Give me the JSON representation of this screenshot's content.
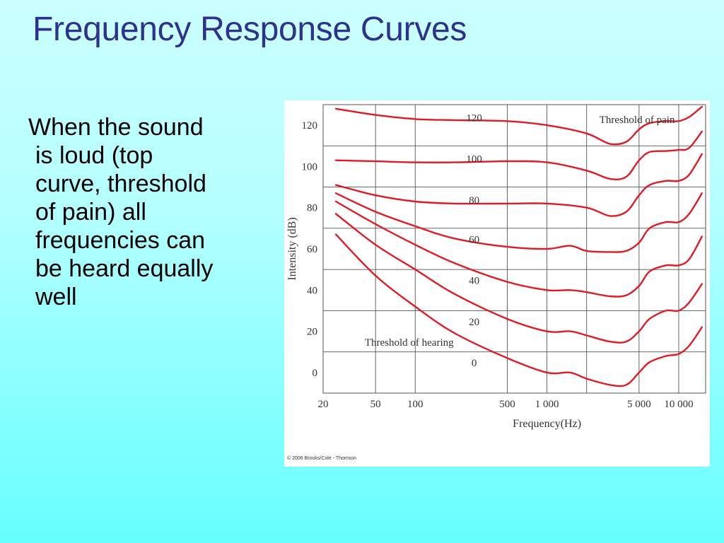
{
  "slide": {
    "title": "Frequency Response Curves",
    "body_lines": [
      "When the sound",
      "is loud (top",
      "curve, threshold",
      "of pain) all",
      "frequencies can",
      "be heard equally",
      "well"
    ]
  },
  "colors": {
    "title": "#2f3191",
    "curve": "#e01b24",
    "grid": "#555555",
    "panel": "#ffffff"
  },
  "chart_data": {
    "type": "line",
    "xscale": "log",
    "xlabel": "Frequency(Hz)",
    "ylabel": "Intensity (dB)",
    "xlim": [
      20,
      16000
    ],
    "ylim": [
      -10,
      130
    ],
    "grid": true,
    "x_ticks": [
      20,
      50,
      100,
      500,
      1000,
      5000,
      10000
    ],
    "x_tick_labels": [
      "20",
      "50",
      "100",
      "500",
      "1 000",
      "5 000",
      "10 000"
    ],
    "y_ticks": [
      0,
      20,
      40,
      60,
      80,
      100,
      120
    ],
    "y_tick_labels": [
      "0",
      "20",
      "40",
      "60",
      "80",
      "100",
      "120"
    ],
    "grid_x": [
      20,
      50,
      100,
      500,
      1000,
      2000,
      5000,
      10000,
      16000
    ],
    "grid_y": [
      -10,
      10,
      30,
      50,
      70,
      90,
      110,
      130
    ],
    "annotations": [
      {
        "text": "Threshold of pain",
        "x": 2500,
        "y": 121
      },
      {
        "text": "Threshold of hearing",
        "x": 90,
        "y": 13
      }
    ],
    "curve_labels_x": 280,
    "series": [
      {
        "name": "120",
        "label_y": 122,
        "x": [
          25,
          50,
          100,
          200,
          500,
          1000,
          2000,
          3000,
          4000,
          5000,
          6000,
          8000,
          10000,
          12000,
          15000
        ],
        "y": [
          128,
          125,
          123,
          122.5,
          122,
          120,
          116,
          111,
          112,
          118,
          121,
          122,
          122,
          124,
          129
        ]
      },
      {
        "name": "100",
        "label_y": 102,
        "x": [
          25,
          50,
          100,
          200,
          500,
          1000,
          2000,
          3000,
          4000,
          5000,
          6000,
          8000,
          10000,
          12000,
          15000
        ],
        "y": [
          103,
          102.5,
          102,
          102,
          102.5,
          102,
          98,
          94,
          95,
          103,
          107,
          107.5,
          108,
          109,
          117
        ]
      },
      {
        "name": "80",
        "label_y": 82,
        "x": [
          25,
          50,
          100,
          200,
          500,
          1000,
          2000,
          3000,
          4000,
          5000,
          6000,
          8000,
          10000,
          12000,
          15000
        ],
        "y": [
          91,
          86,
          83,
          82,
          82,
          82,
          80,
          76,
          78,
          86,
          91,
          93,
          93,
          96,
          106
        ]
      },
      {
        "name": "60",
        "label_y": 63,
        "x": [
          25,
          50,
          100,
          200,
          500,
          1000,
          1500,
          2000,
          3000,
          4000,
          5000,
          6000,
          8000,
          10000,
          12000,
          15000
        ],
        "y": [
          87,
          78,
          71,
          65,
          61,
          60,
          61.5,
          59,
          58.5,
          59,
          63,
          70,
          73,
          73,
          77,
          87
        ]
      },
      {
        "name": "40",
        "label_y": 43,
        "x": [
          25,
          50,
          100,
          200,
          500,
          1000,
          1500,
          2000,
          3000,
          4000,
          5000,
          6000,
          8000,
          10000,
          12000,
          15000
        ],
        "y": [
          83,
          72,
          62,
          53,
          44,
          40,
          40,
          39,
          37,
          37.5,
          42,
          49,
          52,
          52,
          55,
          66
        ]
      },
      {
        "name": "20",
        "label_y": 23,
        "x": [
          25,
          50,
          100,
          200,
          500,
          1000,
          1500,
          2000,
          3000,
          4000,
          5000,
          6000,
          8000,
          10000,
          12000,
          15000
        ],
        "y": [
          77,
          62,
          50,
          38,
          26,
          20,
          20,
          18,
          15,
          15,
          20,
          26,
          30,
          30,
          34,
          43
        ]
      },
      {
        "name": "0",
        "label_y": 3,
        "x": [
          25,
          50,
          100,
          200,
          500,
          1000,
          1500,
          2000,
          3000,
          4000,
          5000,
          6000,
          8000,
          10000,
          12000,
          15000
        ],
        "y": [
          67,
          47,
          32,
          19,
          7,
          0,
          0,
          -3,
          -6,
          -6,
          0,
          5,
          8,
          9,
          13,
          22
        ]
      }
    ]
  },
  "copyright": "© 2006 Brooks/Cole - Thomson"
}
